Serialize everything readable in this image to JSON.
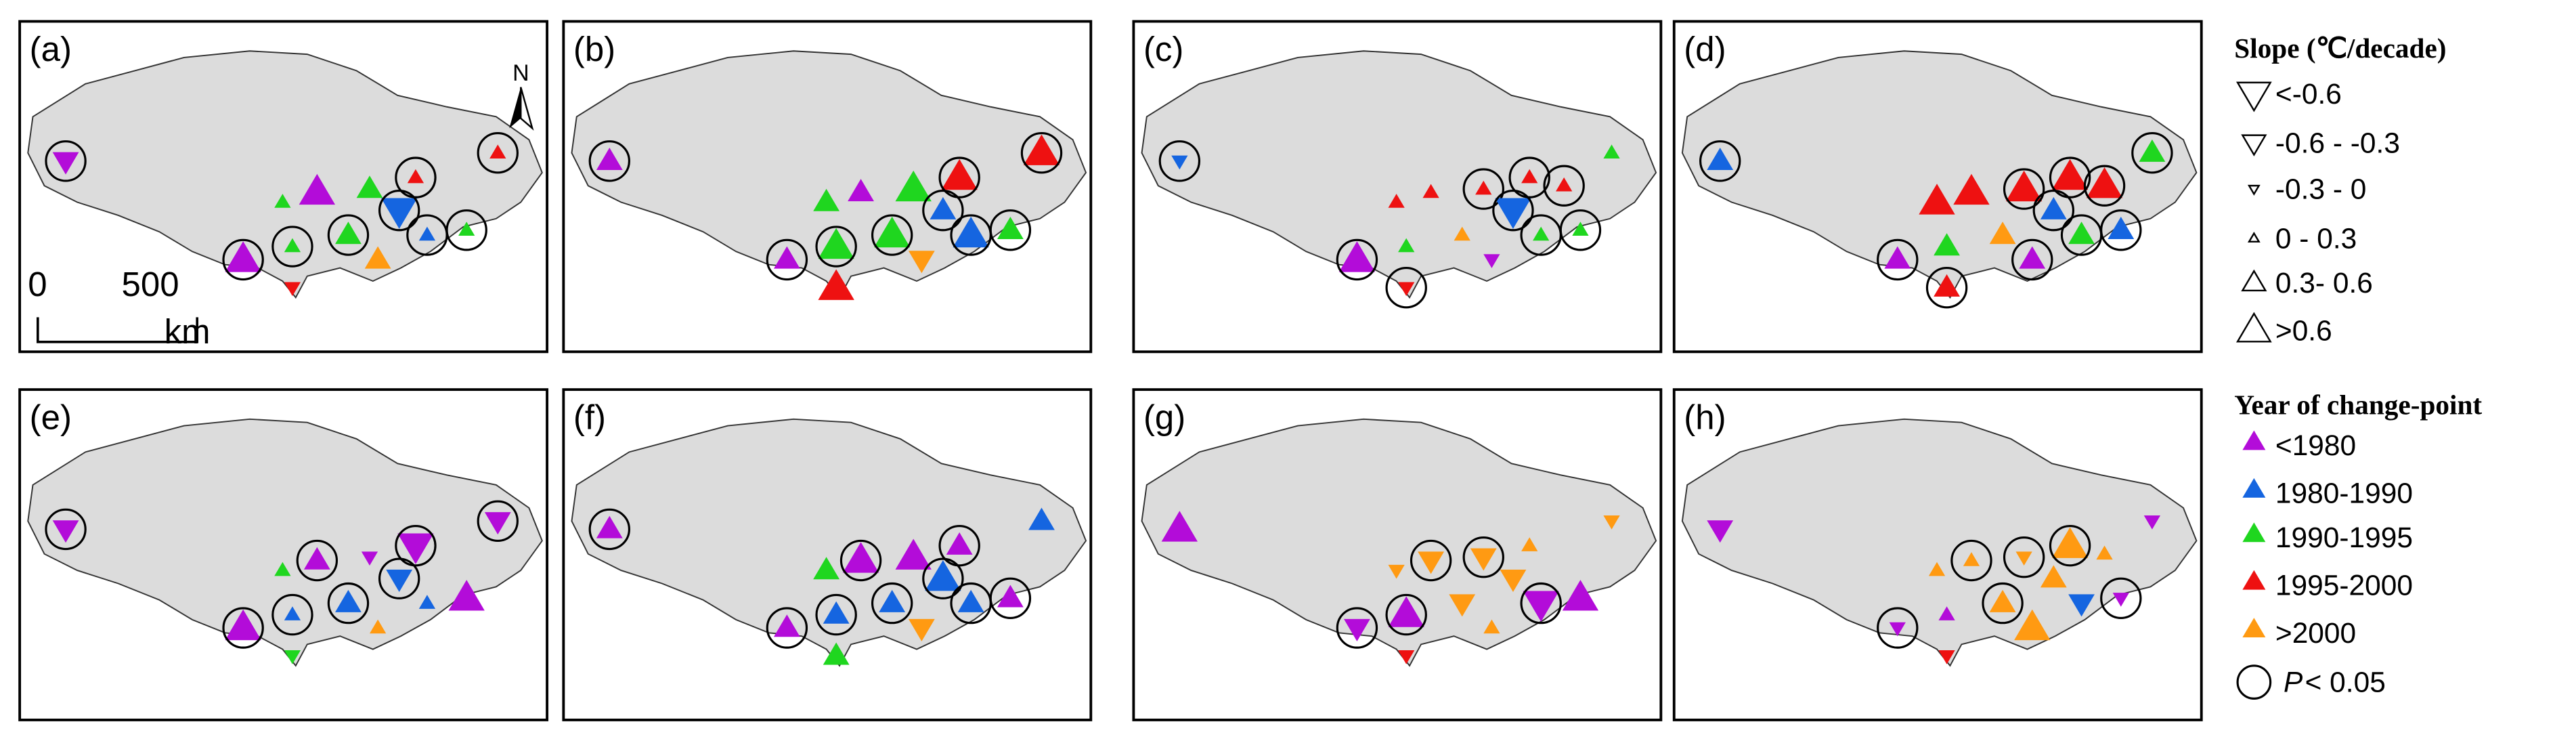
{
  "panels": [
    {
      "label": "(a)"
    },
    {
      "label": "(b)"
    },
    {
      "label": "(c)"
    },
    {
      "label": "(d)"
    },
    {
      "label": "(e)"
    },
    {
      "label": "(f)"
    },
    {
      "label": "(g)"
    },
    {
      "label": "(h)"
    }
  ],
  "north": "N",
  "scale_bar": {
    "start": "0",
    "end": "500",
    "unit": "km"
  },
  "legend": {
    "slope_title": "Slope (℃/decade)",
    "slope_items": [
      "<-0.6",
      "-0.6 - -0.3",
      "-0.3 - 0",
      "0 - 0.3",
      "0.3- 0.6",
      ">0.6"
    ],
    "year_title": "Year of change-point",
    "year_items": [
      "<1980",
      "1980-1990",
      "1990-1995",
      "1995-2000",
      ">2000"
    ],
    "significance": {
      "symbol": "P",
      "text": "< 0.05"
    }
  }
}
